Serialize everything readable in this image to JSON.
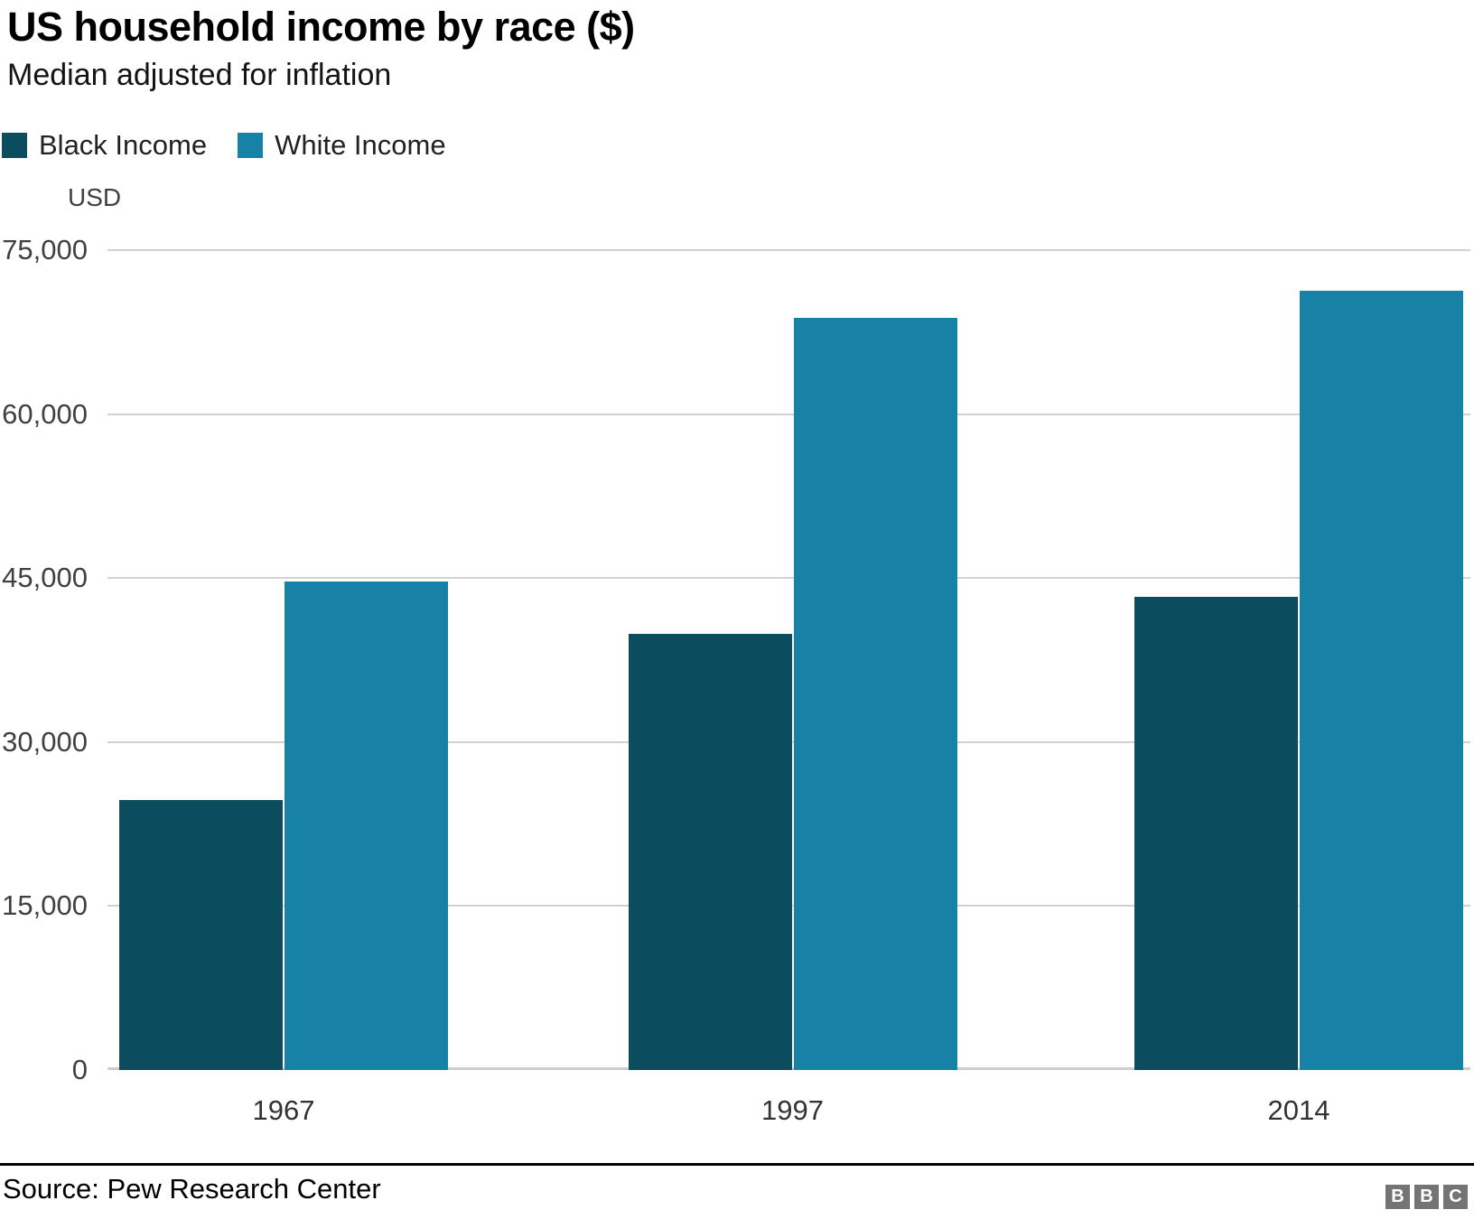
{
  "chart_data": {
    "type": "bar",
    "title": "US household income by race ($)",
    "subtitle": "Median adjusted for inflation",
    "y_axis_unit": "USD",
    "categories": [
      "1967",
      "1997",
      "2014"
    ],
    "series": [
      {
        "name": "Black Income",
        "color": "#0b4d5e",
        "values": [
          24700,
          39900,
          43300
        ]
      },
      {
        "name": "White Income",
        "color": "#1781a6",
        "values": [
          44700,
          68800,
          71300
        ]
      }
    ],
    "ylim": [
      0,
      75000
    ],
    "ytick_step": 15000,
    "ytick_labels": [
      "75,000",
      "60,000",
      "45,000",
      "30,000",
      "15,000",
      "0"
    ],
    "grid": "horizontal",
    "legend_position": "top-left"
  },
  "footer": {
    "source": "Source: Pew Research Center",
    "logo_letters": [
      "B",
      "B",
      "C"
    ]
  },
  "colors": {
    "gridline": "#d2d2d2",
    "logo_gray": "#747474"
  }
}
